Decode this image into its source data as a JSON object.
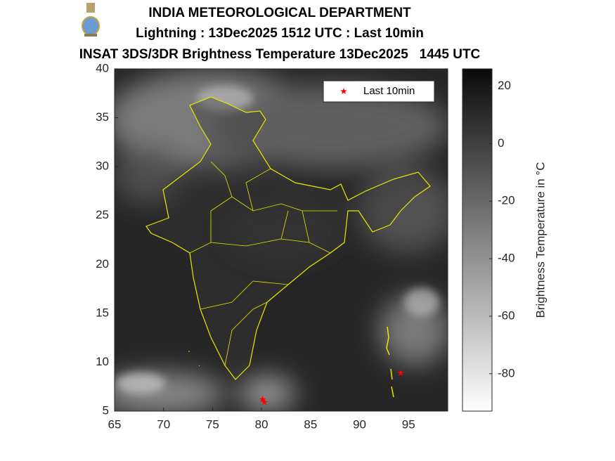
{
  "header": {
    "lines": [
      "INDIA METEOROLOGICAL DEPARTMENT",
      "Lightning : 13Dec2025 1512 UTC : Last 10min",
      "INSAT 3DS/3DR Brightness Temperature 13Dec2025   1445 UTC"
    ]
  },
  "chart_data": {
    "type": "scatter",
    "x": [
      80.1,
      80.3,
      94.2
    ],
    "series": [
      {
        "name": "Last 10min",
        "color": "#ff0000",
        "values": [
          6.2,
          5.9,
          8.9
        ]
      }
    ],
    "xlim": [
      65,
      99
    ],
    "ylim": [
      5,
      40
    ],
    "xticks": [
      65,
      70,
      75,
      80,
      85,
      90,
      95
    ],
    "yticks": [
      5,
      10,
      15,
      20,
      25,
      30,
      35,
      40
    ],
    "legend": "top-right",
    "colorbar": {
      "label": "Brightness Temperature in °C",
      "clim": [
        -93,
        26
      ],
      "ticks": [
        20,
        0,
        -20,
        -40,
        -60,
        -80
      ]
    }
  }
}
